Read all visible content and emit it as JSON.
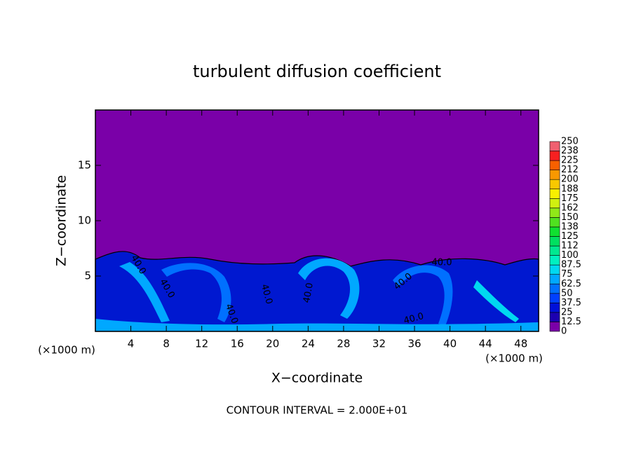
{
  "chart_data": {
    "type": "contour",
    "title": "turbulent diffusion coefficient",
    "xlabel": "X−coordinate",
    "ylabel": "Z−coordinate",
    "x_unit_label": "(×1000 m)",
    "y_unit_label": "(×1000 m)",
    "footnote": "CONTOUR INTERVAL = 2.000E+01",
    "xlim": [
      0,
      50
    ],
    "xticks": [
      4,
      8,
      12,
      16,
      20,
      24,
      28,
      32,
      36,
      40,
      44,
      48
    ],
    "ylim": [
      0,
      20
    ],
    "yticks": [
      5,
      10,
      15
    ],
    "contour_labels": [
      "40.0",
      "40.0",
      "40.0",
      "40.0",
      "40.0",
      "40.0",
      "40.0",
      "40.0"
    ],
    "colorbar": {
      "lim": [
        0,
        250
      ],
      "ticks": [
        0,
        12.5,
        25,
        37.5,
        50,
        62.5,
        75,
        87.5,
        100,
        {
          "value": 112.5,
          "label": "112"
        },
        125,
        {
          "value": 137.5,
          "label": "138"
        },
        150,
        {
          "value": 162.5,
          "label": "162"
        },
        175,
        {
          "value": 187.5,
          "label": "188"
        },
        200,
        {
          "value": 212.5,
          "label": "212"
        },
        225,
        {
          "value": 237.5,
          "label": "238"
        },
        250
      ],
      "colors": [
        "#7a00a8",
        "#1c00b0",
        "#0010d8",
        "#0040ff",
        "#0070ff",
        "#00a8ff",
        "#00d8f0",
        "#00f0c0",
        "#00e890",
        "#00e060",
        "#10e030",
        "#50e020",
        "#90e818",
        "#d0f010",
        "#f8f000",
        "#f8c800",
        "#f89800",
        "#f86000",
        "#f82020",
        "#f06070"
      ]
    }
  }
}
